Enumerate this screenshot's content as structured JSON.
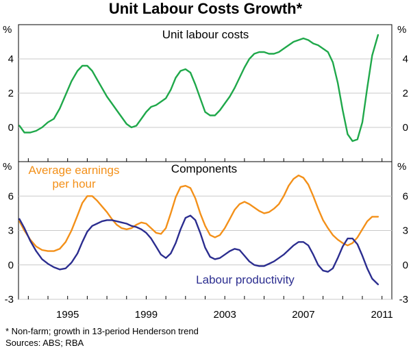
{
  "title": "Unit Labour Costs Growth*",
  "footnote": "*    Non-farm; growth in 13-period Henderson trend",
  "sources": "Sources: ABS; RBA",
  "colors": {
    "unit_labour_costs": "#1fa84a",
    "average_earnings": "#f39019",
    "labour_productivity": "#2b2d8f",
    "axis": "#000000"
  },
  "x_tick_labels": [
    "1995",
    "1999",
    "2003",
    "2007",
    "2011"
  ],
  "chart_data": [
    {
      "type": "line",
      "title": "Unit labour costs",
      "ylabel": "%",
      "ylim": [
        -2,
        6
      ],
      "y_tick_labels": [
        "0",
        "2",
        "4"
      ],
      "xlim": [
        1992.5,
        2011.5
      ],
      "series": [
        {
          "name": "Unit labour costs",
          "color": "#1fa84a",
          "x": [
            1992.55,
            1992.8,
            1993.1,
            1993.4,
            1993.7,
            1994.0,
            1994.3,
            1994.6,
            1994.9,
            1995.2,
            1995.5,
            1995.75,
            1996.0,
            1996.25,
            1996.5,
            1996.75,
            1997.0,
            1997.25,
            1997.5,
            1997.75,
            1998.0,
            1998.25,
            1998.5,
            1998.75,
            1999.0,
            1999.25,
            1999.5,
            1999.75,
            2000.0,
            2000.25,
            2000.5,
            2000.75,
            2001.0,
            2001.25,
            2001.5,
            2001.75,
            2002.0,
            2002.25,
            2002.5,
            2002.75,
            2003.0,
            2003.25,
            2003.5,
            2003.75,
            2004.0,
            2004.25,
            2004.5,
            2004.75,
            2005.0,
            2005.25,
            2005.5,
            2005.75,
            2006.0,
            2006.25,
            2006.5,
            2006.75,
            2007.0,
            2007.25,
            2007.5,
            2007.75,
            2008.0,
            2008.25,
            2008.5,
            2008.75,
            2009.0,
            2009.25,
            2009.5,
            2009.75,
            2010.0,
            2010.25,
            2010.5,
            2010.8
          ],
          "values": [
            0.1,
            -0.3,
            -0.3,
            -0.2,
            0.0,
            0.3,
            0.5,
            1.1,
            1.9,
            2.7,
            3.3,
            3.6,
            3.6,
            3.3,
            2.8,
            2.3,
            1.8,
            1.4,
            1.0,
            0.6,
            0.2,
            0.0,
            0.1,
            0.5,
            0.9,
            1.2,
            1.3,
            1.5,
            1.7,
            2.2,
            2.9,
            3.3,
            3.4,
            3.2,
            2.5,
            1.7,
            0.9,
            0.7,
            0.7,
            1.0,
            1.4,
            1.8,
            2.3,
            2.9,
            3.5,
            4.0,
            4.3,
            4.4,
            4.4,
            4.3,
            4.3,
            4.4,
            4.6,
            4.8,
            5.0,
            5.1,
            5.2,
            5.1,
            4.9,
            4.8,
            4.6,
            4.4,
            3.8,
            2.6,
            1.0,
            -0.4,
            -0.8,
            -0.7,
            0.3,
            2.3,
            4.2,
            5.4
          ]
        }
      ]
    },
    {
      "type": "line",
      "title": "Components",
      "ylabel": "%",
      "ylim": [
        -3,
        9
      ],
      "y_tick_labels": [
        "-3",
        "0",
        "3",
        "6"
      ],
      "xlim": [
        1992.5,
        2011.5
      ],
      "annotations": [
        "Average earnings per hour",
        "Labour productivity"
      ],
      "series": [
        {
          "name": "Average earnings per hour",
          "color": "#f39019",
          "x": [
            1992.55,
            1992.8,
            1993.1,
            1993.4,
            1993.7,
            1994.0,
            1994.3,
            1994.6,
            1994.9,
            1995.2,
            1995.5,
            1995.75,
            1996.0,
            1996.25,
            1996.5,
            1996.75,
            1997.0,
            1997.25,
            1997.5,
            1997.75,
            1998.0,
            1998.25,
            1998.5,
            1998.75,
            1999.0,
            1999.25,
            1999.5,
            1999.75,
            2000.0,
            2000.25,
            2000.5,
            2000.75,
            2001.0,
            2001.25,
            2001.5,
            2001.75,
            2002.0,
            2002.25,
            2002.5,
            2002.75,
            2003.0,
            2003.25,
            2003.5,
            2003.75,
            2004.0,
            2004.25,
            2004.5,
            2004.75,
            2005.0,
            2005.25,
            2005.5,
            2005.75,
            2006.0,
            2006.25,
            2006.5,
            2006.75,
            2007.0,
            2007.25,
            2007.5,
            2007.75,
            2008.0,
            2008.25,
            2008.5,
            2008.75,
            2009.0,
            2009.25,
            2009.5,
            2009.75,
            2010.0,
            2010.25,
            2010.5,
            2010.8
          ],
          "values": [
            3.8,
            3.0,
            2.2,
            1.6,
            1.3,
            1.2,
            1.2,
            1.4,
            2.0,
            3.0,
            4.3,
            5.4,
            6.0,
            6.0,
            5.6,
            5.1,
            4.6,
            4.0,
            3.5,
            3.2,
            3.1,
            3.2,
            3.5,
            3.7,
            3.6,
            3.2,
            2.8,
            2.7,
            3.2,
            4.5,
            5.9,
            6.8,
            6.9,
            6.7,
            5.8,
            4.5,
            3.4,
            2.6,
            2.4,
            2.6,
            3.2,
            4.0,
            4.8,
            5.3,
            5.5,
            5.3,
            5.0,
            4.7,
            4.5,
            4.6,
            4.9,
            5.3,
            6.0,
            6.9,
            7.5,
            7.8,
            7.6,
            7.0,
            6.0,
            4.9,
            3.9,
            3.2,
            2.6,
            2.2,
            1.9,
            1.7,
            1.9,
            2.4,
            3.1,
            3.8,
            4.2,
            4.2
          ]
        },
        {
          "name": "Labour productivity",
          "color": "#2b2d8f",
          "x": [
            1992.55,
            1992.8,
            1993.1,
            1993.4,
            1993.7,
            1994.0,
            1994.3,
            1994.6,
            1994.9,
            1995.2,
            1995.5,
            1995.75,
            1996.0,
            1996.25,
            1996.5,
            1996.75,
            1997.0,
            1997.25,
            1997.5,
            1997.75,
            1998.0,
            1998.25,
            1998.5,
            1998.75,
            1999.0,
            1999.25,
            1999.5,
            1999.75,
            2000.0,
            2000.25,
            2000.5,
            2000.75,
            2001.0,
            2001.25,
            2001.5,
            2001.75,
            2002.0,
            2002.25,
            2002.5,
            2002.75,
            2003.0,
            2003.25,
            2003.5,
            2003.75,
            2004.0,
            2004.25,
            2004.5,
            2004.75,
            2005.0,
            2005.25,
            2005.5,
            2005.75,
            2006.0,
            2006.25,
            2006.5,
            2006.75,
            2007.0,
            2007.25,
            2007.5,
            2007.75,
            2008.0,
            2008.25,
            2008.5,
            2008.75,
            2009.0,
            2009.25,
            2009.5,
            2009.75,
            2010.0,
            2010.25,
            2010.5,
            2010.8
          ],
          "values": [
            4.0,
            3.2,
            2.1,
            1.2,
            0.5,
            0.1,
            -0.2,
            -0.4,
            -0.3,
            0.2,
            1.0,
            2.0,
            2.9,
            3.4,
            3.6,
            3.8,
            3.9,
            3.9,
            3.8,
            3.7,
            3.6,
            3.4,
            3.3,
            3.1,
            2.8,
            2.3,
            1.6,
            0.9,
            0.6,
            1.0,
            1.9,
            3.1,
            4.1,
            4.3,
            3.9,
            2.8,
            1.5,
            0.7,
            0.5,
            0.6,
            0.9,
            1.2,
            1.4,
            1.3,
            0.8,
            0.3,
            0.0,
            -0.1,
            -0.1,
            0.1,
            0.3,
            0.6,
            0.9,
            1.3,
            1.7,
            2.0,
            2.0,
            1.7,
            0.9,
            0.0,
            -0.5,
            -0.6,
            -0.3,
            0.6,
            1.6,
            2.3,
            2.3,
            1.8,
            0.8,
            -0.3,
            -1.2,
            -1.7
          ]
        }
      ]
    }
  ]
}
